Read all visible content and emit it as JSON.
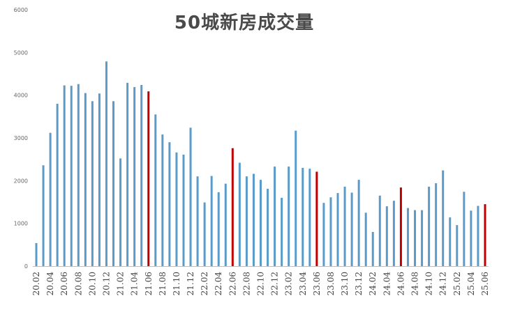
{
  "chart_data": {
    "type": "bar",
    "title": "50城新房成交量",
    "xlabel": "",
    "ylabel": "",
    "ylim": [
      0,
      6000
    ],
    "yticks": [
      0,
      1000,
      2000,
      3000,
      4000,
      5000,
      6000
    ],
    "grid": false,
    "legend": "none",
    "colors": {
      "default": "#5b9bc9",
      "highlight": "#c00000"
    },
    "categories": [
      "20.02",
      "20.03",
      "20.04",
      "20.05",
      "20.06",
      "20.07",
      "20.08",
      "20.09",
      "20.10",
      "20.11",
      "20.12",
      "21.01",
      "21.02",
      "21.03",
      "21.04",
      "21.05",
      "21.06",
      "21.07",
      "21.08",
      "21.09",
      "21.10",
      "21.11",
      "21.12",
      "22.01",
      "22.02",
      "22.03",
      "22.04",
      "22.05",
      "22.06",
      "22.07",
      "22.08",
      "22.09",
      "22.10",
      "22.11",
      "22.12",
      "23.01",
      "23.02",
      "23.03",
      "23.04",
      "23.05",
      "23.06",
      "23.07",
      "23.08",
      "23.09",
      "23.10",
      "23.11",
      "23.12",
      "24.01",
      "24.02",
      "24.03",
      "24.04",
      "24.05",
      "24.06",
      "24.07",
      "24.08",
      "24.09",
      "24.10",
      "24.11",
      "24.12",
      "25.01",
      "25.02",
      "25.03",
      "25.04",
      "25.05",
      "25.06"
    ],
    "tick_labels": [
      "20.02",
      "20.04",
      "20.06",
      "20.08",
      "20.10",
      "20.12",
      "21.02",
      "21.04",
      "21.06",
      "21.08",
      "21.10",
      "21.12",
      "22.02",
      "22.04",
      "22.06",
      "22.08",
      "22.10",
      "22.12",
      "23.02",
      "23.04",
      "23.06",
      "23.08",
      "23.10",
      "23.12",
      "24.02",
      "24.04",
      "24.06",
      "24.08",
      "24.10",
      "24.12",
      "25.02",
      "25.04",
      "25.06"
    ],
    "values": [
      540,
      2360,
      3120,
      3800,
      4230,
      4220,
      4260,
      4050,
      3860,
      4040,
      4790,
      3860,
      2520,
      4290,
      4190,
      4240,
      4090,
      3550,
      3080,
      2900,
      2660,
      2610,
      3240,
      2100,
      1490,
      2110,
      1730,
      1930,
      2760,
      2420,
      2100,
      2160,
      2020,
      1810,
      2330,
      1600,
      2330,
      3170,
      2300,
      2280,
      2210,
      1480,
      1610,
      1710,
      1860,
      1720,
      2020,
      1250,
      800,
      1650,
      1400,
      1530,
      1840,
      1360,
      1310,
      1310,
      1860,
      1940,
      2240,
      1140,
      960,
      1740,
      1300,
      1410,
      1450
    ],
    "highlighted": [
      "21.06",
      "22.06",
      "23.06",
      "24.06",
      "25.06"
    ]
  }
}
